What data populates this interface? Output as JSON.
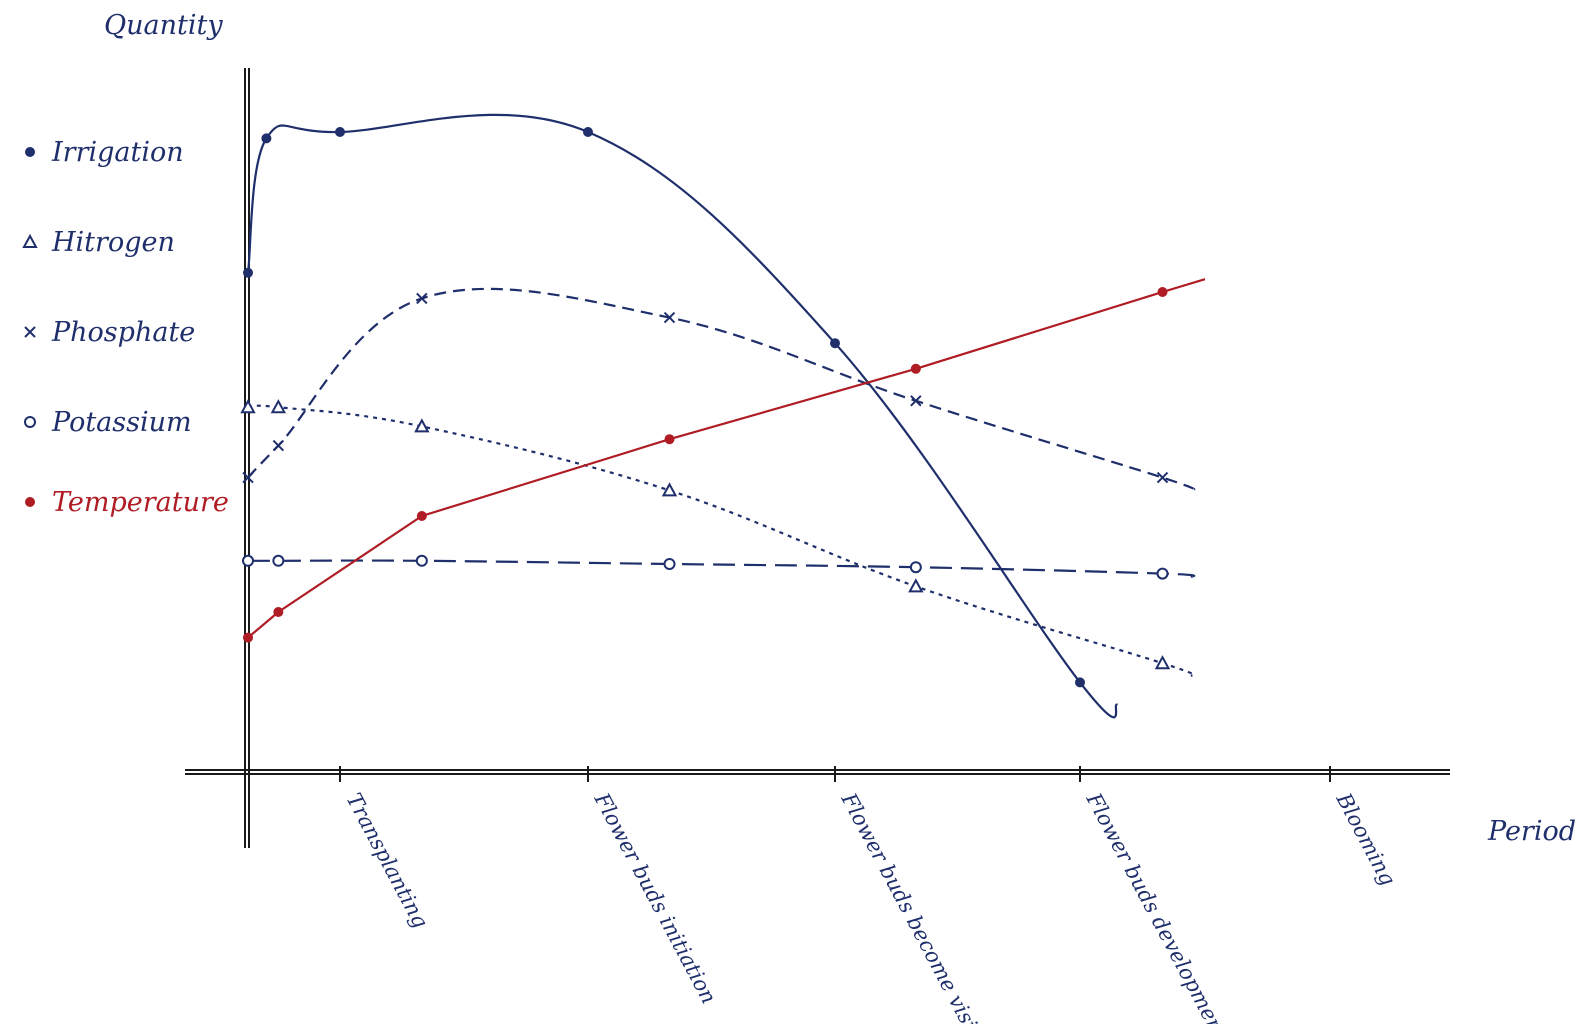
{
  "chart_data": {
    "type": "line",
    "xlabel": "Period",
    "ylabel": "Quantity",
    "categories": [
      "",
      "Transplanting",
      "Flower buds initiation",
      "Flower buds become visible",
      "Flower buds development",
      "Blooming"
    ],
    "ylim": [
      0,
      100
    ],
    "grid": false,
    "legend_position": "left",
    "colors": {
      "blue": "#1f2f6b",
      "red": "#b01c24",
      "axis": "#1a1a1a"
    },
    "series": [
      {
        "name": "Irrigation",
        "marker": "dot",
        "color": "#1f2f6b",
        "dash": "solid",
        "points": [
          [
            0.0,
            73
          ],
          [
            0.2,
            94
          ],
          [
            1.0,
            95
          ],
          [
            2.0,
            95
          ],
          [
            3.0,
            62
          ],
          [
            4.0,
            9
          ]
        ],
        "tail": [
          [
            4.15,
            5.5
          ]
        ]
      },
      {
        "name": "Hitrogen",
        "marker": "triangle",
        "color": "#1f2f6b",
        "dash": "fine",
        "points": [
          [
            0.0,
            52
          ],
          [
            0.33,
            52
          ],
          [
            1.33,
            49
          ],
          [
            2.33,
            39
          ],
          [
            3.33,
            24
          ],
          [
            4.33,
            12
          ]
        ],
        "tail": [
          [
            4.45,
            10
          ]
        ]
      },
      {
        "name": "Phosphate",
        "marker": "cross",
        "color": "#1f2f6b",
        "dash": "medium",
        "points": [
          [
            0.0,
            41
          ],
          [
            0.33,
            46
          ],
          [
            1.33,
            69
          ],
          [
            2.33,
            66
          ],
          [
            3.33,
            53
          ],
          [
            4.33,
            41
          ]
        ],
        "tail": [
          [
            4.45,
            39
          ]
        ]
      },
      {
        "name": "Potassium",
        "marker": "circle",
        "color": "#1f2f6b",
        "dash": "long",
        "points": [
          [
            0.0,
            28
          ],
          [
            0.33,
            28
          ],
          [
            1.33,
            28
          ],
          [
            2.33,
            27.5
          ],
          [
            3.33,
            27
          ],
          [
            4.33,
            26
          ]
        ],
        "tail": [
          [
            4.45,
            25.5
          ]
        ]
      },
      {
        "name": "Temperature",
        "marker": "dot",
        "color": "#b01c24",
        "dash": "solid",
        "points": [
          [
            0.0,
            16
          ],
          [
            0.33,
            20
          ],
          [
            1.33,
            35
          ],
          [
            2.33,
            47
          ],
          [
            3.33,
            58
          ],
          [
            4.33,
            70
          ]
        ],
        "tail": [
          [
            4.5,
            72
          ]
        ]
      }
    ]
  }
}
